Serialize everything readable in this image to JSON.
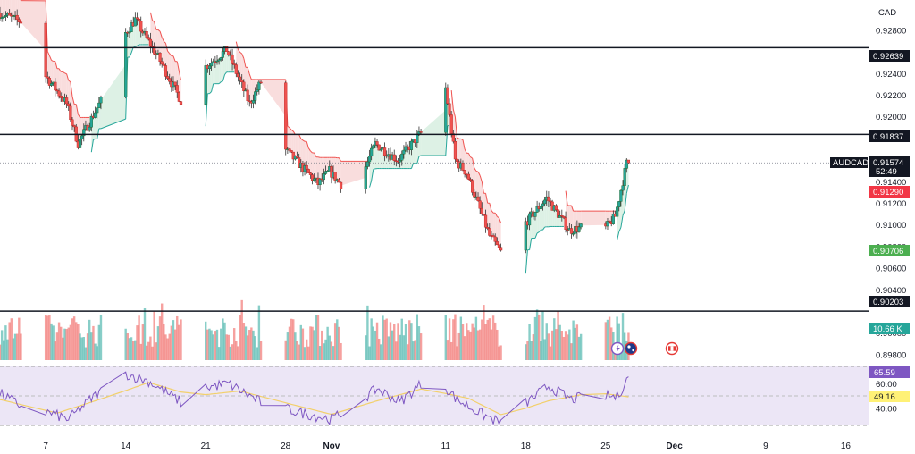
{
  "currency": "CAD",
  "symbol": "AUDCAD",
  "price_labels": {
    "last": "0.91574",
    "countdown": "52:49",
    "upper_band": "0.91290",
    "lower_band": "0.90706",
    "level_top": "0.92639",
    "level_mid": "0.91837",
    "level_bottom": "0.90203",
    "volume": "10.66 K",
    "rsi": "65.59",
    "rsi_ma": "49.16"
  },
  "colors": {
    "up": "#26a69a",
    "down": "#ef5350",
    "band_red_fill": "#f8d7d7",
    "band_green_fill": "#d7efe0",
    "rsi": "#7e57c2",
    "rsi_ma": "#f2d06b",
    "rsi_bg": "#ece6f6",
    "label_dark": "#131722",
    "label_green": "#4caf50",
    "label_red": "#f23645",
    "label_teal": "#26a69a",
    "label_purple": "#7e57c2",
    "label_yellow": "#fff176"
  },
  "chart_data": {
    "type": "candlestick",
    "price_axis": {
      "ticks": [
        "0.92800",
        "0.92400",
        "0.92200",
        "0.92000",
        "0.91400",
        "0.91200",
        "0.91000",
        "0.90800",
        "0.90600",
        "0.90400",
        "0.90000",
        "0.89800"
      ],
      "range": [
        0.8975,
        0.9308
      ]
    },
    "rsi_axis": {
      "ticks": [
        "60.00",
        "40.00"
      ],
      "range": [
        26,
        74
      ]
    },
    "x_axis": {
      "ticks": [
        "7",
        "14",
        "21",
        "28",
        "Nov",
        "11",
        "18",
        "25",
        "Dec",
        "9",
        "16"
      ],
      "range": [
        "2024-10-03",
        "2024-12-18"
      ]
    },
    "horizontal_levels": [
      0.92639,
      0.91837,
      0.90203
    ],
    "last_price": 0.91574,
    "band_upper_last": 0.9129,
    "band_lower_last": 0.90706,
    "last_volume": "10.66 K",
    "rsi_last": 65.59,
    "rsi_ma_last": 49.16,
    "anchors": [
      [
        "2024-10-03",
        0.9296
      ],
      [
        "2024-10-05",
        0.9288
      ],
      [
        "2024-10-07",
        0.924
      ],
      [
        "2024-10-09",
        0.9212
      ],
      [
        "2024-10-10",
        0.9175
      ],
      [
        "2024-10-12",
        0.9215
      ],
      [
        "2024-10-14",
        0.9275
      ],
      [
        "2024-10-15",
        0.929
      ],
      [
        "2024-10-17",
        0.9255
      ],
      [
        "2024-10-19",
        0.9215
      ],
      [
        "2024-10-20",
        0.917
      ],
      [
        "2024-10-21",
        0.9245
      ],
      [
        "2024-10-23",
        0.9262
      ],
      [
        "2024-10-25",
        0.9212
      ],
      [
        "2024-10-26",
        0.9232
      ],
      [
        "2024-10-27",
        0.9182
      ],
      [
        "2024-10-29",
        0.916
      ],
      [
        "2024-10-31",
        0.9138
      ],
      [
        "2024-11-01",
        0.915
      ],
      [
        "2024-11-03",
        0.9125
      ],
      [
        "2024-11-05",
        0.9175
      ],
      [
        "2024-11-07",
        0.916
      ],
      [
        "2024-11-09",
        0.9185
      ],
      [
        "2024-11-10",
        0.9262
      ],
      [
        "2024-11-11",
        0.924
      ],
      [
        "2024-11-12",
        0.916
      ],
      [
        "2024-11-13",
        0.9148
      ],
      [
        "2024-11-15",
        0.909
      ],
      [
        "2024-11-16",
        0.9075
      ],
      [
        "2024-11-18",
        0.91
      ],
      [
        "2024-11-20",
        0.9125
      ],
      [
        "2024-11-22",
        0.9095
      ],
      [
        "2024-11-24",
        0.91
      ],
      [
        "2024-11-25",
        0.9095
      ],
      [
        "2024-11-26",
        0.9108
      ],
      [
        "2024-11-27",
        0.9157
      ]
    ],
    "rsi_anchors": [
      [
        "2024-10-03",
        52
      ],
      [
        "2024-10-05",
        41
      ],
      [
        "2024-10-07",
        37
      ],
      [
        "2024-10-09",
        31
      ],
      [
        "2024-10-11",
        48
      ],
      [
        "2024-10-14",
        68
      ],
      [
        "2024-10-16",
        62
      ],
      [
        "2024-10-19",
        44
      ],
      [
        "2024-10-21",
        57
      ],
      [
        "2024-10-23",
        60
      ],
      [
        "2024-10-26",
        44
      ],
      [
        "2024-10-29",
        37
      ],
      [
        "2024-11-01",
        31
      ],
      [
        "2024-11-03",
        42
      ],
      [
        "2024-11-05",
        56
      ],
      [
        "2024-11-07",
        45
      ],
      [
        "2024-11-09",
        61
      ],
      [
        "2024-11-10",
        67
      ],
      [
        "2024-11-12",
        47
      ],
      [
        "2024-11-14",
        36
      ],
      [
        "2024-11-16",
        27
      ],
      [
        "2024-11-18",
        44
      ],
      [
        "2024-11-20",
        58
      ],
      [
        "2024-11-22",
        47
      ],
      [
        "2024-11-24",
        51
      ],
      [
        "2024-11-26",
        49
      ],
      [
        "2024-11-27",
        65.6
      ]
    ],
    "rsi_ma_anchors": [
      [
        "2024-10-03",
        47
      ],
      [
        "2024-10-08",
        36
      ],
      [
        "2024-10-13",
        51
      ],
      [
        "2024-10-16",
        61
      ],
      [
        "2024-10-20",
        50
      ],
      [
        "2024-10-24",
        54
      ],
      [
        "2024-10-29",
        42
      ],
      [
        "2024-11-01",
        35
      ],
      [
        "2024-11-05",
        46
      ],
      [
        "2024-11-09",
        56
      ],
      [
        "2024-11-13",
        48
      ],
      [
        "2024-11-16",
        34
      ],
      [
        "2024-11-20",
        46
      ],
      [
        "2024-11-24",
        53
      ],
      [
        "2024-11-27",
        49.2
      ]
    ]
  }
}
